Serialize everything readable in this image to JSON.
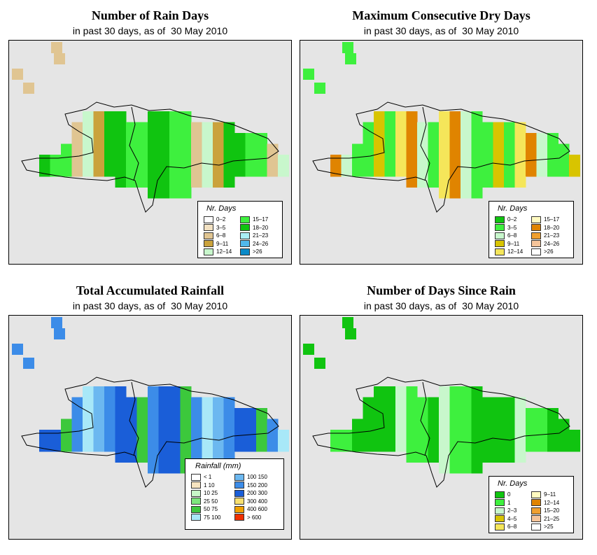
{
  "panels": [
    {
      "title": "Number of Rain Days",
      "subtitle_a": "in past 30 days, as of",
      "subtitle_b": "30 May 2010",
      "legend_title": "Nr. Days",
      "legend": [
        {
          "label": "0–2",
          "color": "#ffffff"
        },
        {
          "label": "3–5",
          "color": "#f2e1c2"
        },
        {
          "label": "6–8",
          "color": "#e0c592"
        },
        {
          "label": "9–11",
          "color": "#caa23c"
        },
        {
          "label": "12–14",
          "color": "#c8f7cc"
        },
        {
          "label": "15–17",
          "color": "#3ef03e"
        },
        {
          "label": "18–20",
          "color": "#10c410"
        },
        {
          "label": "21–23",
          "color": "#aaeef5"
        },
        {
          "label": "24–26",
          "color": "#52b8ec"
        },
        {
          "label": ">26",
          "color": "#0a8ac8"
        }
      ]
    },
    {
      "title": "Maximum Consecutive Dry Days",
      "subtitle_a": "in past 30 days, as of",
      "subtitle_b": "30 May 2010",
      "legend_title": "Nr. Days",
      "legend": [
        {
          "label": "0–2",
          "color": "#10c410"
        },
        {
          "label": "3–5",
          "color": "#3ef03e"
        },
        {
          "label": "6–8",
          "color": "#c8f7cc"
        },
        {
          "label": "9–11",
          "color": "#d8c400"
        },
        {
          "label": "12–14",
          "color": "#f5e65a"
        },
        {
          "label": "15–17",
          "color": "#fffac0"
        },
        {
          "label": "18–20",
          "color": "#e08400"
        },
        {
          "label": "21–23",
          "color": "#f0a030"
        },
        {
          "label": "24–26",
          "color": "#f5c49a"
        },
        {
          "label": ">26",
          "color": "#ffffff"
        }
      ]
    },
    {
      "title": "Total Accumulated Rainfall",
      "subtitle_a": "in past 30 days, as of",
      "subtitle_b": "30 May 2010",
      "legend_title": "Rainfall (mm)",
      "legend": [
        {
          "label": "< 1",
          "color": "#ffffff"
        },
        {
          "label": "1   10",
          "color": "#f7e4c0"
        },
        {
          "label": "10   25",
          "color": "#c8f7c8"
        },
        {
          "label": "25   50",
          "color": "#7ce67c"
        },
        {
          "label": "50   75",
          "color": "#3cc83c"
        },
        {
          "label": "75   100",
          "color": "#a8e8f8"
        },
        {
          "label": "100   150",
          "color": "#6cb8f0"
        },
        {
          "label": "150   200",
          "color": "#3c8ce8"
        },
        {
          "label": "200   300",
          "color": "#1a5ed8"
        },
        {
          "label": "300   400",
          "color": "#f8e070"
        },
        {
          "label": "400   600",
          "color": "#f0a000"
        },
        {
          "label": "> 600",
          "color": "#f03000"
        }
      ]
    },
    {
      "title": "Number of Days Since Rain",
      "subtitle_a": "in past 30 days, as of",
      "subtitle_b": "30 May 2010",
      "legend_title": "Nr. Days",
      "legend": [
        {
          "label": "0",
          "color": "#10c410"
        },
        {
          "label": "1",
          "color": "#3ef03e"
        },
        {
          "label": "2–3",
          "color": "#c8f7cc"
        },
        {
          "label": "4–5",
          "color": "#d8c400"
        },
        {
          "label": "6–8",
          "color": "#f5e65a"
        },
        {
          "label": "9–11",
          "color": "#fffac0"
        },
        {
          "label": "12–14",
          "color": "#e08400"
        },
        {
          "label": "15–20",
          "color": "#f0a030"
        },
        {
          "label": "21–25",
          "color": "#f5c49a"
        },
        {
          "label": ">25",
          "color": "#ffffff"
        }
      ]
    }
  ]
}
